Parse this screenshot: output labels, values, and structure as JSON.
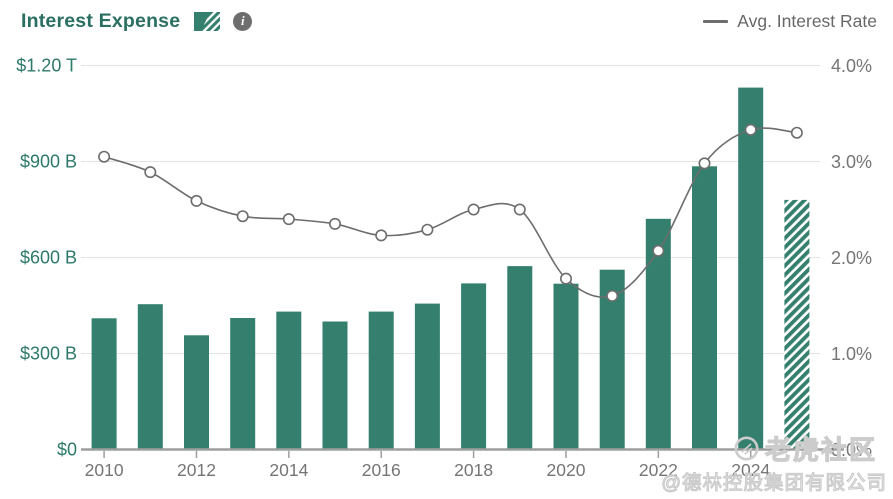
{
  "header": {
    "title": "Interest Expense",
    "info_icon_glyph": "i",
    "right_legend_label": "Avg. Interest Rate"
  },
  "watermark": {
    "community": "老虎社区",
    "company": "@德林控股集团有限公司"
  },
  "icons": {
    "info": "circled-i",
    "tiger_logo": "ring-badge"
  },
  "colors": {
    "bar": "#347f6d",
    "title_teal": "#2a6f62",
    "left_axis_label": "#2e7a6a",
    "axis_gray": "#757575",
    "line": "#6d6d6d",
    "grid": "#e4e4e4",
    "baseline": "#9e9e9e",
    "marker_fill": "#ffffff",
    "watermark": "#cccccc"
  },
  "chart_data": {
    "type": "bar+line",
    "title": "Interest Expense",
    "legend_position": "top",
    "grid": "horizontal-only",
    "years": [
      2010,
      2011,
      2012,
      2013,
      2014,
      2015,
      2016,
      2017,
      2018,
      2019,
      2020,
      2021,
      2022,
      2023,
      2024,
      2025
    ],
    "series": [
      {
        "name": "Interest Expense",
        "type": "bar",
        "unit": "USD billions",
        "values": [
          410,
          454,
          357,
          411,
          431,
          400,
          431,
          456,
          519,
          573,
          518,
          562,
          721,
          885,
          1131,
          780
        ]
      },
      {
        "name": "Avg. Interest Rate",
        "type": "line",
        "unit": "percent",
        "values": [
          3.05,
          2.89,
          2.59,
          2.43,
          2.4,
          2.35,
          2.23,
          2.29,
          2.5,
          2.5,
          1.78,
          1.6,
          2.07,
          2.98,
          3.33,
          3.3
        ]
      }
    ],
    "hatch_index": 15,
    "left_axis": {
      "ticks": [
        "$0",
        "$300 B",
        "$600 B",
        "$900 B",
        "$1.20 T"
      ],
      "values": [
        0,
        300,
        600,
        900,
        1200
      ],
      "max": 1200
    },
    "right_axis": {
      "ticks": [
        "0.0%",
        "1.0%",
        "2.0%",
        "3.0%",
        "4.0%"
      ],
      "values": [
        0,
        1,
        2,
        3,
        4
      ],
      "max": 4
    },
    "x_axis": {
      "labels": [
        "2010",
        "2012",
        "2014",
        "2016",
        "2018",
        "2020",
        "2022",
        "2024"
      ]
    }
  }
}
